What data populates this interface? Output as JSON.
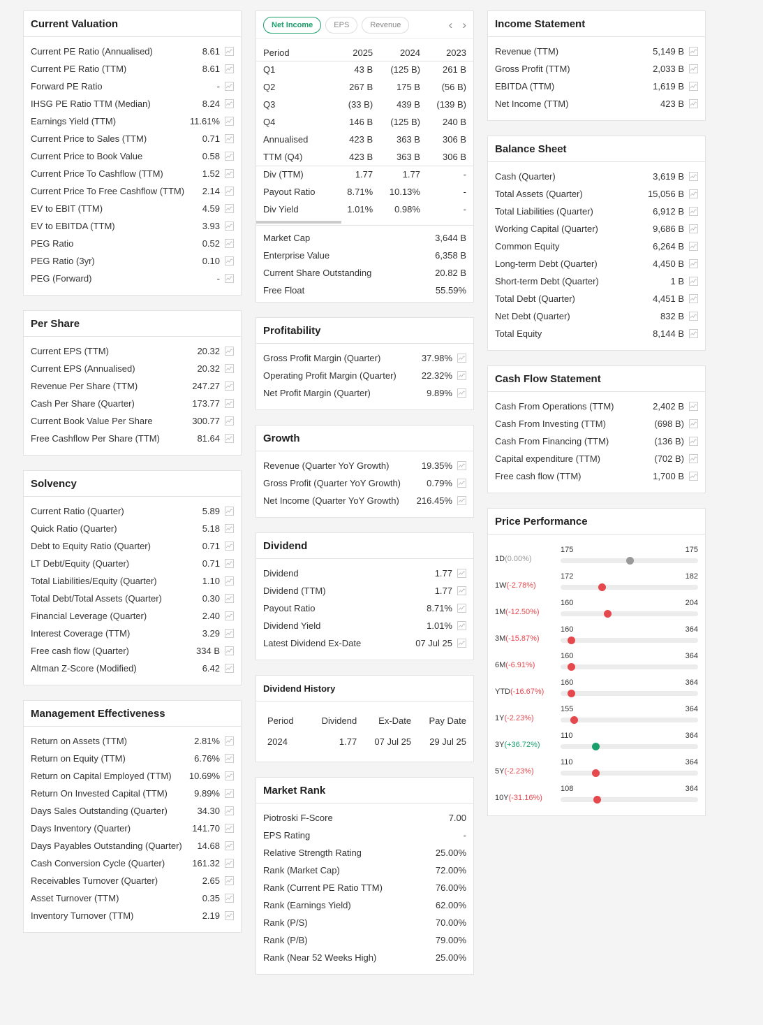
{
  "col1": [
    {
      "title": "Current Valuation",
      "rows": [
        [
          "Current PE Ratio (Annualised)",
          "8.61"
        ],
        [
          "Current PE Ratio (TTM)",
          "8.61"
        ],
        [
          "Forward PE Ratio",
          "-"
        ],
        [
          "IHSG PE Ratio TTM (Median)",
          "8.24"
        ],
        [
          "Earnings Yield (TTM)",
          "11.61%"
        ],
        [
          "Current Price to Sales (TTM)",
          "0.71"
        ],
        [
          "Current Price to Book Value",
          "0.58"
        ],
        [
          "Current Price To Cashflow (TTM)",
          "1.52"
        ],
        [
          "Current Price To Free Cashflow (TTM)",
          "2.14"
        ],
        [
          "EV to EBIT (TTM)",
          "4.59"
        ],
        [
          "EV to EBITDA (TTM)",
          "3.93"
        ],
        [
          "PEG Ratio",
          "0.52"
        ],
        [
          "PEG Ratio (3yr)",
          "0.10"
        ],
        [
          "PEG (Forward)",
          "-"
        ]
      ]
    },
    {
      "title": "Per Share",
      "rows": [
        [
          "Current EPS (TTM)",
          "20.32"
        ],
        [
          "Current EPS (Annualised)",
          "20.32"
        ],
        [
          "Revenue Per Share (TTM)",
          "247.27"
        ],
        [
          "Cash Per Share (Quarter)",
          "173.77"
        ],
        [
          "Current Book Value Per Share",
          "300.77"
        ],
        [
          "Free Cashflow Per Share (TTM)",
          "81.64"
        ]
      ]
    },
    {
      "title": "Solvency",
      "rows": [
        [
          "Current Ratio (Quarter)",
          "5.89"
        ],
        [
          "Quick Ratio (Quarter)",
          "5.18"
        ],
        [
          "Debt to Equity Ratio (Quarter)",
          "0.71"
        ],
        [
          "LT Debt/Equity (Quarter)",
          "0.71"
        ],
        [
          "Total Liabilities/Equity (Quarter)",
          "1.10"
        ],
        [
          "Total Debt/Total Assets (Quarter)",
          "0.30"
        ],
        [
          "Financial Leverage (Quarter)",
          "2.40"
        ],
        [
          "Interest Coverage (TTM)",
          "3.29"
        ],
        [
          "Free cash flow (Quarter)",
          "334 B"
        ],
        [
          "Altman Z-Score (Modified)",
          "6.42"
        ]
      ]
    },
    {
      "title": "Management Effectiveness",
      "rows": [
        [
          "Return on Assets (TTM)",
          "2.81%"
        ],
        [
          "Return on Equity (TTM)",
          "6.76%"
        ],
        [
          "Return on Capital Employed (TTM)",
          "10.69%"
        ],
        [
          "Return On Invested Capital (TTM)",
          "9.89%"
        ],
        [
          "Days Sales Outstanding (Quarter)",
          "34.30"
        ],
        [
          "Days Inventory (Quarter)",
          "141.70"
        ],
        [
          "Days Payables Outstanding (Quarter)",
          "14.68"
        ],
        [
          "Cash Conversion Cycle (Quarter)",
          "161.32"
        ],
        [
          "Receivables Turnover (Quarter)",
          "2.65"
        ],
        [
          "Asset Turnover (TTM)",
          "0.35"
        ],
        [
          "Inventory Turnover (TTM)",
          "2.19"
        ]
      ]
    }
  ],
  "income_table": {
    "tabs": [
      "Net Income",
      "EPS",
      "Revenue"
    ],
    "headers": [
      "Period",
      "2025",
      "2024",
      "2023"
    ],
    "rows": [
      [
        "Q1",
        "43 B",
        "(125 B)",
        "261 B"
      ],
      [
        "Q2",
        "267 B",
        "175 B",
        "(56 B)"
      ],
      [
        "Q3",
        "(33 B)",
        "439 B",
        "(139 B)"
      ],
      [
        "Q4",
        "146 B",
        "(125 B)",
        "240 B"
      ],
      [
        "Annualised",
        "423 B",
        "363 B",
        "306 B"
      ],
      [
        "TTM (Q4)",
        "423 B",
        "363 B",
        "306 B"
      ],
      [
        "Div (TTM)",
        "1.77",
        "1.77",
        "-"
      ],
      [
        "Payout Ratio",
        "8.71%",
        "10.13%",
        "-"
      ],
      [
        "Div Yield",
        "1.01%",
        "0.98%",
        "-"
      ]
    ],
    "stats": [
      [
        "Market Cap",
        "3,644 B"
      ],
      [
        "Enterprise Value",
        "6,358 B"
      ],
      [
        "Current Share Outstanding",
        "20.82 B"
      ],
      [
        "Free Float",
        "55.59%"
      ]
    ]
  },
  "col2": [
    {
      "title": "Profitability",
      "rows": [
        [
          "Gross Profit Margin (Quarter)",
          "37.98%"
        ],
        [
          "Operating Profit Margin (Quarter)",
          "22.32%"
        ],
        [
          "Net Profit Margin (Quarter)",
          "9.89%"
        ]
      ]
    },
    {
      "title": "Growth",
      "rows": [
        [
          "Revenue (Quarter YoY Growth)",
          "19.35%"
        ],
        [
          "Gross Profit (Quarter YoY Growth)",
          "0.79%"
        ],
        [
          "Net Income (Quarter YoY Growth)",
          "216.45%"
        ]
      ]
    },
    {
      "title": "Dividend",
      "rows": [
        [
          "Dividend",
          "1.77"
        ],
        [
          "Dividend (TTM)",
          "1.77"
        ],
        [
          "Payout Ratio",
          "8.71%"
        ],
        [
          "Dividend Yield",
          "1.01%"
        ],
        [
          "Latest Dividend Ex-Date",
          "07 Jul 25"
        ]
      ]
    }
  ],
  "dividend_history": {
    "title": "Dividend History",
    "headers": [
      "Period",
      "Dividend",
      "Ex-Date",
      "Pay Date"
    ],
    "rows": [
      [
        "2024",
        "1.77",
        "07 Jul 25",
        "29 Jul 25"
      ]
    ]
  },
  "market_rank": {
    "title": "Market Rank",
    "rows": [
      [
        "Piotroski F-Score",
        "7.00"
      ],
      [
        "EPS Rating",
        "-"
      ],
      [
        "Relative Strength Rating",
        "25.00%"
      ],
      [
        "Rank (Market Cap)",
        "72.00%"
      ],
      [
        "Rank (Current PE Ratio TTM)",
        "76.00%"
      ],
      [
        "Rank (Earnings Yield)",
        "62.00%"
      ],
      [
        "Rank (P/S)",
        "70.00%"
      ],
      [
        "Rank (P/B)",
        "79.00%"
      ],
      [
        "Rank (Near 52 Weeks High)",
        "25.00%"
      ]
    ]
  },
  "col3": [
    {
      "title": "Income Statement",
      "rows": [
        [
          "Revenue (TTM)",
          "5,149 B"
        ],
        [
          "Gross Profit (TTM)",
          "2,033 B"
        ],
        [
          "EBITDA (TTM)",
          "1,619 B"
        ],
        [
          "Net Income (TTM)",
          "423 B"
        ]
      ]
    },
    {
      "title": "Balance Sheet",
      "rows": [
        [
          "Cash (Quarter)",
          "3,619 B"
        ],
        [
          "Total Assets (Quarter)",
          "15,056 B"
        ],
        [
          "Total Liabilities (Quarter)",
          "6,912 B"
        ],
        [
          "Working Capital (Quarter)",
          "9,686 B"
        ],
        [
          "Common Equity",
          "6,264 B"
        ],
        [
          "Long-term Debt (Quarter)",
          "4,450 B"
        ],
        [
          "Short-term Debt (Quarter)",
          "1 B"
        ],
        [
          "Total Debt (Quarter)",
          "4,451 B"
        ],
        [
          "Net Debt (Quarter)",
          "832 B"
        ],
        [
          "Total Equity",
          "8,144 B"
        ]
      ]
    },
    {
      "title": "Cash Flow Statement",
      "rows": [
        [
          "Cash From Operations (TTM)",
          "2,402 B"
        ],
        [
          "Cash From Investing (TTM)",
          "(698 B)"
        ],
        [
          "Cash From Financing (TTM)",
          "(136 B)"
        ],
        [
          "Capital expenditure (TTM)",
          "(702 B)"
        ],
        [
          "Free cash flow (TTM)",
          "1,700 B"
        ]
      ]
    }
  ],
  "price_performance": {
    "title": "Price Performance",
    "colors": {
      "up": "#1a9e6b",
      "down": "#e5484d",
      "flat": "#999999"
    },
    "items": [
      {
        "period": "1D",
        "change": "(0.00%)",
        "trend": "flat",
        "low": "175",
        "high": "175",
        "position": 0.5
      },
      {
        "period": "1W",
        "change": "(-2.78%)",
        "trend": "down",
        "low": "172",
        "high": "182",
        "position": 0.3
      },
      {
        "period": "1M",
        "change": "(-12.50%)",
        "trend": "down",
        "low": "160",
        "high": "204",
        "position": 0.34
      },
      {
        "period": "3M",
        "change": "(-15.87%)",
        "trend": "down",
        "low": "160",
        "high": "364",
        "position": 0.074
      },
      {
        "period": "6M",
        "change": "(-6.91%)",
        "trend": "down",
        "low": "160",
        "high": "364",
        "position": 0.074
      },
      {
        "period": "YTD",
        "change": "(-16.67%)",
        "trend": "down",
        "low": "160",
        "high": "364",
        "position": 0.074
      },
      {
        "period": "1Y",
        "change": "(-2.23%)",
        "trend": "down",
        "low": "155",
        "high": "364",
        "position": 0.096
      },
      {
        "period": "3Y",
        "change": "(+36.72%)",
        "trend": "up",
        "low": "110",
        "high": "364",
        "position": 0.256
      },
      {
        "period": "5Y",
        "change": "(-2.23%)",
        "trend": "down",
        "low": "110",
        "high": "364",
        "position": 0.256
      },
      {
        "period": "10Y",
        "change": "(-31.16%)",
        "trend": "down",
        "low": "108",
        "high": "364",
        "position": 0.262
      }
    ]
  }
}
